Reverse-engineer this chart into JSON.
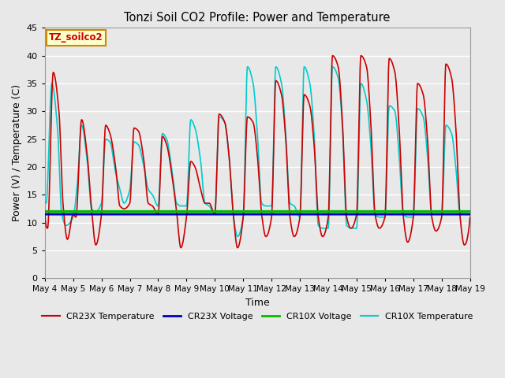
{
  "title": "Tonzi Soil CO2 Profile: Power and Temperature",
  "xlabel": "Time",
  "ylabel": "Power (V) / Temperature (C)",
  "ylim": [
    0,
    45
  ],
  "yticks": [
    0,
    5,
    10,
    15,
    20,
    25,
    30,
    35,
    40,
    45
  ],
  "x_tick_labels": [
    "May 4",
    "May 5",
    "May 6",
    "May 7",
    "May 8",
    "May 9",
    "May 10",
    "May 11",
    "May 12",
    "May 13",
    "May 14",
    "May 15",
    "May 16",
    "May 17",
    "May 18",
    "May 19"
  ],
  "cr23x_voltage_value": 11.5,
  "cr10x_voltage_value": 12.0,
  "cr23x_color": "#cc0000",
  "cr10x_temp_color": "#00cccc",
  "cr23x_voltage_color": "#0000bb",
  "cr10x_voltage_color": "#00bb00",
  "legend_label_cr23x_temp": "CR23X Temperature",
  "legend_label_cr23x_volt": "CR23X Voltage",
  "legend_label_cr10x_volt": "CR10X Voltage",
  "legend_label_cr10x_temp": "CR10X Temperature",
  "annotation_text": "TZ_soilco2",
  "bg_color": "#e8e8e8",
  "plot_bg_color": "#e8e8e8",
  "grid_color": "#ffffff",
  "num_days": 15,
  "cr23x_temp_data": [
    [
      0.0,
      12.0
    ],
    [
      0.1,
      9.0
    ],
    [
      0.3,
      37.0
    ],
    [
      0.5,
      30.0
    ],
    [
      0.65,
      13.0
    ],
    [
      0.8,
      7.0
    ],
    [
      1.0,
      11.5
    ],
    [
      1.1,
      11.0
    ],
    [
      1.3,
      28.5
    ],
    [
      1.5,
      22.0
    ],
    [
      1.65,
      12.5
    ],
    [
      1.8,
      6.0
    ],
    [
      2.0,
      11.5
    ],
    [
      2.15,
      27.5
    ],
    [
      2.3,
      26.0
    ],
    [
      2.5,
      20.0
    ],
    [
      2.65,
      13.0
    ],
    [
      2.8,
      12.5
    ],
    [
      3.0,
      13.5
    ],
    [
      3.15,
      27.0
    ],
    [
      3.3,
      26.5
    ],
    [
      3.5,
      21.0
    ],
    [
      3.65,
      13.5
    ],
    [
      3.8,
      13.0
    ],
    [
      4.0,
      11.5
    ],
    [
      4.15,
      25.5
    ],
    [
      4.3,
      24.0
    ],
    [
      4.5,
      18.0
    ],
    [
      4.65,
      12.0
    ],
    [
      4.8,
      5.5
    ],
    [
      5.0,
      11.0
    ],
    [
      5.15,
      21.0
    ],
    [
      5.3,
      20.0
    ],
    [
      5.5,
      16.0
    ],
    [
      5.65,
      13.5
    ],
    [
      5.8,
      13.5
    ],
    [
      6.0,
      11.5
    ],
    [
      6.15,
      29.5
    ],
    [
      6.35,
      28.0
    ],
    [
      6.5,
      22.0
    ],
    [
      6.65,
      11.5
    ],
    [
      6.8,
      5.5
    ],
    [
      7.0,
      11.0
    ],
    [
      7.15,
      29.0
    ],
    [
      7.35,
      28.0
    ],
    [
      7.5,
      22.0
    ],
    [
      7.65,
      11.5
    ],
    [
      7.8,
      7.5
    ],
    [
      8.0,
      11.0
    ],
    [
      8.15,
      35.5
    ],
    [
      8.35,
      33.0
    ],
    [
      8.5,
      25.0
    ],
    [
      8.65,
      11.0
    ],
    [
      8.8,
      7.5
    ],
    [
      9.0,
      11.0
    ],
    [
      9.15,
      33.0
    ],
    [
      9.35,
      31.0
    ],
    [
      9.5,
      24.0
    ],
    [
      9.65,
      11.0
    ],
    [
      9.8,
      7.5
    ],
    [
      10.0,
      11.0
    ],
    [
      10.15,
      40.0
    ],
    [
      10.35,
      38.0
    ],
    [
      10.5,
      28.0
    ],
    [
      10.65,
      11.0
    ],
    [
      10.8,
      9.0
    ],
    [
      11.0,
      11.5
    ],
    [
      11.15,
      40.0
    ],
    [
      11.35,
      38.0
    ],
    [
      11.5,
      28.0
    ],
    [
      11.65,
      11.5
    ],
    [
      11.8,
      9.0
    ],
    [
      12.0,
      11.0
    ],
    [
      12.15,
      39.5
    ],
    [
      12.35,
      37.0
    ],
    [
      12.5,
      27.0
    ],
    [
      12.65,
      11.0
    ],
    [
      12.8,
      6.5
    ],
    [
      13.0,
      11.0
    ],
    [
      13.15,
      35.0
    ],
    [
      13.35,
      33.0
    ],
    [
      13.5,
      25.0
    ],
    [
      13.65,
      11.0
    ],
    [
      13.8,
      8.5
    ],
    [
      14.0,
      11.0
    ],
    [
      14.15,
      38.5
    ],
    [
      14.35,
      36.0
    ],
    [
      14.5,
      27.0
    ],
    [
      14.65,
      11.0
    ],
    [
      14.8,
      6.0
    ],
    [
      15.0,
      11.0
    ]
  ],
  "cr10x_temp_data": [
    [
      0.0,
      14.0
    ],
    [
      0.05,
      13.5
    ],
    [
      0.25,
      35.0
    ],
    [
      0.45,
      27.0
    ],
    [
      0.6,
      11.5
    ],
    [
      0.75,
      9.5
    ],
    [
      1.0,
      11.0
    ],
    [
      1.15,
      17.0
    ],
    [
      1.3,
      27.5
    ],
    [
      1.5,
      21.0
    ],
    [
      1.65,
      12.5
    ],
    [
      1.8,
      12.0
    ],
    [
      2.0,
      13.5
    ],
    [
      2.15,
      25.0
    ],
    [
      2.3,
      24.5
    ],
    [
      2.5,
      19.0
    ],
    [
      2.65,
      16.0
    ],
    [
      2.8,
      13.5
    ],
    [
      3.0,
      16.0
    ],
    [
      3.15,
      24.5
    ],
    [
      3.3,
      24.0
    ],
    [
      3.5,
      20.0
    ],
    [
      3.65,
      16.0
    ],
    [
      3.8,
      15.0
    ],
    [
      4.0,
      13.0
    ],
    [
      4.15,
      26.0
    ],
    [
      4.3,
      25.0
    ],
    [
      4.5,
      19.0
    ],
    [
      4.65,
      13.5
    ],
    [
      4.8,
      13.0
    ],
    [
      5.0,
      13.0
    ],
    [
      5.15,
      28.5
    ],
    [
      5.3,
      27.0
    ],
    [
      5.5,
      21.0
    ],
    [
      5.65,
      13.5
    ],
    [
      5.8,
      13.0
    ],
    [
      6.0,
      11.5
    ],
    [
      6.15,
      29.0
    ],
    [
      6.35,
      28.0
    ],
    [
      6.5,
      22.0
    ],
    [
      6.65,
      11.5
    ],
    [
      6.8,
      7.5
    ],
    [
      7.0,
      11.0
    ],
    [
      7.15,
      38.0
    ],
    [
      7.35,
      35.0
    ],
    [
      7.5,
      26.0
    ],
    [
      7.65,
      13.5
    ],
    [
      7.8,
      13.0
    ],
    [
      8.0,
      13.0
    ],
    [
      8.15,
      38.0
    ],
    [
      8.35,
      35.0
    ],
    [
      8.5,
      26.0
    ],
    [
      8.65,
      13.5
    ],
    [
      8.8,
      13.0
    ],
    [
      9.0,
      11.0
    ],
    [
      9.15,
      38.0
    ],
    [
      9.35,
      35.0
    ],
    [
      9.5,
      26.0
    ],
    [
      9.65,
      9.5
    ],
    [
      9.8,
      9.0
    ],
    [
      10.0,
      9.0
    ],
    [
      10.15,
      38.0
    ],
    [
      10.35,
      36.0
    ],
    [
      10.5,
      27.0
    ],
    [
      10.65,
      9.5
    ],
    [
      10.8,
      9.0
    ],
    [
      11.0,
      9.0
    ],
    [
      11.15,
      35.0
    ],
    [
      11.35,
      32.0
    ],
    [
      11.5,
      24.0
    ],
    [
      11.65,
      11.5
    ],
    [
      11.8,
      11.0
    ],
    [
      12.0,
      11.0
    ],
    [
      12.15,
      31.0
    ],
    [
      12.35,
      30.0
    ],
    [
      12.5,
      22.0
    ],
    [
      12.65,
      11.5
    ],
    [
      12.8,
      11.0
    ],
    [
      13.0,
      11.0
    ],
    [
      13.15,
      30.5
    ],
    [
      13.35,
      29.0
    ],
    [
      13.5,
      22.0
    ],
    [
      13.65,
      11.5
    ],
    [
      13.8,
      11.5
    ],
    [
      14.0,
      11.5
    ],
    [
      14.15,
      27.5
    ],
    [
      14.35,
      26.0
    ],
    [
      14.5,
      20.0
    ],
    [
      14.65,
      11.5
    ],
    [
      14.8,
      11.5
    ],
    [
      15.0,
      11.5
    ]
  ]
}
